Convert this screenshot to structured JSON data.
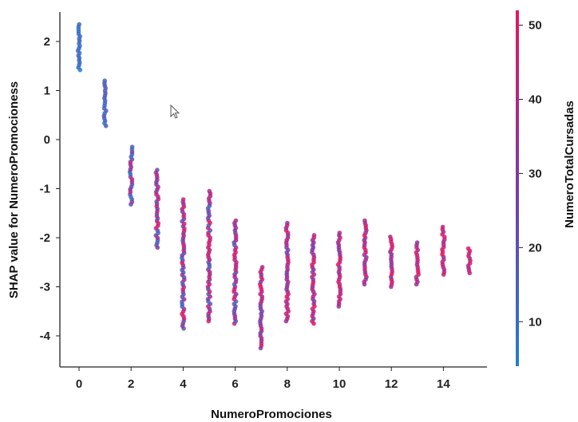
{
  "chart_data": {
    "type": "scatter",
    "title": "",
    "xlabel": "NumeroPromociones",
    "ylabel": "SHAP value for NumeroPromocioness",
    "colorbar_label": "NumeroTotalCursadas",
    "xlim": [
      -0.8,
      15.8
    ],
    "ylim": [
      -4.5,
      2.65
    ],
    "x_ticks": [
      0,
      2,
      4,
      6,
      8,
      10,
      12,
      14
    ],
    "y_ticks": [
      2,
      1,
      0,
      -1,
      -2,
      -3,
      -4
    ],
    "colorbar_range": [
      4,
      52
    ],
    "colorbar_ticks": [
      50,
      40,
      30,
      20,
      10
    ],
    "colorbar_colors": {
      "low": "#1f7fd0",
      "mid": "#7a3aa8",
      "high": "#e8145f"
    },
    "grid": false,
    "series_by_x": [
      {
        "x": 0,
        "ymin": 1.42,
        "ymax": 2.35,
        "cmin": 6,
        "cmax": 14
      },
      {
        "x": 1,
        "ymin": 0.28,
        "ymax": 1.2,
        "cmin": 8,
        "cmax": 20
      },
      {
        "x": 2,
        "ymin": -1.32,
        "ymax": -0.15,
        "cmin": 10,
        "cmax": 44
      },
      {
        "x": 3,
        "ymin": -2.2,
        "ymax": -0.62,
        "cmin": 10,
        "cmax": 50
      },
      {
        "x": 4,
        "ymin": -3.85,
        "ymax": -1.22,
        "cmin": 12,
        "cmax": 52
      },
      {
        "x": 5,
        "ymin": -3.7,
        "ymax": -1.05,
        "cmin": 12,
        "cmax": 52
      },
      {
        "x": 6,
        "ymin": -3.75,
        "ymax": -1.65,
        "cmin": 14,
        "cmax": 52
      },
      {
        "x": 7,
        "ymin": -4.25,
        "ymax": -2.6,
        "cmin": 20,
        "cmax": 52
      },
      {
        "x": 8,
        "ymin": -3.7,
        "ymax": -1.7,
        "cmin": 24,
        "cmax": 52
      },
      {
        "x": 9,
        "ymin": -3.75,
        "ymax": -1.95,
        "cmin": 26,
        "cmax": 52
      },
      {
        "x": 10,
        "ymin": -3.4,
        "ymax": -1.9,
        "cmin": 28,
        "cmax": 52
      },
      {
        "x": 11,
        "ymin": -2.95,
        "ymax": -1.65,
        "cmin": 30,
        "cmax": 52
      },
      {
        "x": 12,
        "ymin": -3.0,
        "ymax": -1.98,
        "cmin": 30,
        "cmax": 52
      },
      {
        "x": 13,
        "ymin": -2.95,
        "ymax": -2.1,
        "cmin": 32,
        "cmax": 52
      },
      {
        "x": 14,
        "ymin": -2.75,
        "ymax": -1.78,
        "cmin": 34,
        "cmax": 52
      },
      {
        "x": 15,
        "ymin": -2.72,
        "ymax": -2.22,
        "cmin": 34,
        "cmax": 52
      }
    ]
  }
}
